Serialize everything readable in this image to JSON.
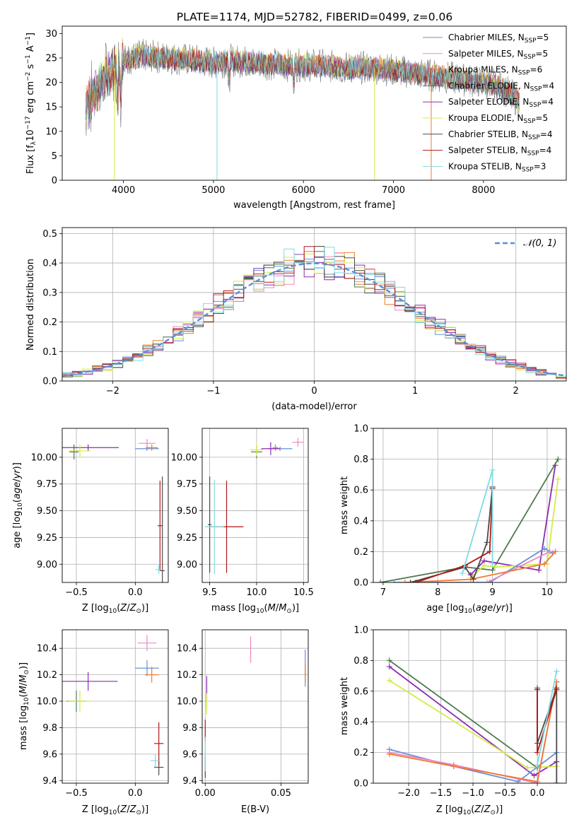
{
  "figure_title": "PLATE=1174, MJD=52782, FIBERID=0499, z=0.06",
  "colors": {
    "Chabrier MILES": "#6a8fd6",
    "Salpeter MILES": "#ef86c0",
    "Kroupa MILES": "#f07a30",
    "Chabrier ELODIE": "#4f7a4f",
    "Salpeter ELODIE": "#8e2ab5",
    "Kroupa ELODIE": "#d4ec44",
    "Chabrier STELIB": "#4a4a4a",
    "Salpeter STELIB": "#b01818",
    "Kroupa STELIB": "#7fdbe3",
    "data": "#7a7a7a",
    "normal": "#5b8fd9"
  },
  "legend1": [
    {
      "pre": "Chabrier MILES, N",
      "sub": "SSP",
      "post": "=5"
    },
    {
      "pre": "Salpeter MILES, N",
      "sub": "SSP",
      "post": "=5"
    },
    {
      "pre": "Kroupa MILES, N",
      "sub": "SSP",
      "post": "=6"
    },
    {
      "pre": "Chabrier ELODIE, N",
      "sub": "SSP",
      "post": "=4"
    },
    {
      "pre": "Salpeter ELODIE, N",
      "sub": "SSP",
      "post": "=4"
    },
    {
      "pre": "Kroupa ELODIE, N",
      "sub": "SSP",
      "post": "=5"
    },
    {
      "pre": "Chabrier STELIB, N",
      "sub": "SSP",
      "post": "=4"
    },
    {
      "pre": "Salpeter STELIB, N",
      "sub": "SSP",
      "post": "=4"
    },
    {
      "pre": "Kroupa STELIB, N",
      "sub": "SSP",
      "post": "=3"
    }
  ],
  "legend2_label": "𝒩(0, 1)",
  "axis_labels": {
    "p1_x": "wavelength [Angstrom, rest frame]",
    "p2_x": "(data-model)/error",
    "p2_y": "Normed distribution",
    "age_y": "age  [log₁₀(age/yr)]",
    "z_x": "Z [log₁₀(Z/Z⊙)]",
    "mass_x": "mass [log₁₀(M/M⊙)]",
    "mw_y": "mass weight",
    "age_x": "age  [log₁₀(age/yr)]",
    "mass_y": "mass [log₁₀(M/M⊙)]",
    "ebv_x": "E(B-V)"
  },
  "chart_data": [
    {
      "id": "spectrum",
      "type": "line",
      "xlabel": "wavelength [Angstrom, rest frame]",
      "ylabel": "Flux [fλ 10⁻¹⁷ erg cm⁻² s⁻¹ A⁻¹]",
      "xlim": [
        3320,
        8920
      ],
      "ylim": [
        0,
        31.5
      ],
      "xticks": [
        4000,
        5000,
        6000,
        7000,
        8000
      ],
      "yticks": [
        0,
        5,
        10,
        15,
        20,
        25,
        30
      ],
      "envelope": [
        [
          3580,
          14
        ],
        [
          3650,
          17
        ],
        [
          3720,
          19
        ],
        [
          3800,
          21
        ],
        [
          3900,
          23
        ],
        [
          4000,
          24.5
        ],
        [
          4200,
          25.5
        ],
        [
          4500,
          25
        ],
        [
          4800,
          24.5
        ],
        [
          5000,
          24
        ],
        [
          5200,
          24.5
        ],
        [
          5500,
          24
        ],
        [
          5800,
          23.5
        ],
        [
          6000,
          23.5
        ],
        [
          6200,
          23.5
        ],
        [
          6400,
          23
        ],
        [
          6600,
          23
        ],
        [
          6800,
          23
        ],
        [
          7000,
          22.5
        ],
        [
          7200,
          22
        ],
        [
          7400,
          21.5
        ],
        [
          7600,
          21
        ],
        [
          7800,
          20.5
        ],
        [
          8000,
          20
        ],
        [
          8200,
          19
        ],
        [
          8300,
          17.5
        ],
        [
          8400,
          16
        ]
      ],
      "dropouts": [
        {
          "x": 3900,
          "series": "Kroupa ELODIE",
          "to": 0
        },
        {
          "x": 5040,
          "series": "Kroupa STELIB",
          "to": 0
        },
        {
          "x": 6790,
          "series": "Kroupa ELODIE",
          "to": 0
        },
        {
          "x": 7420,
          "series": "Kroupa MILES",
          "to": 0
        }
      ],
      "grid": false,
      "legend": "top-right"
    },
    {
      "id": "residuals",
      "type": "step",
      "xlabel": "(data-model)/error",
      "ylabel": "Normed distribution",
      "xlim": [
        -2.5,
        2.5
      ],
      "ylim": [
        0,
        0.52
      ],
      "xticks": [
        -2,
        -1,
        0,
        1,
        2
      ],
      "yticks": [
        0.0,
        0.1,
        0.2,
        0.3,
        0.4,
        0.5
      ],
      "bin_width": 0.1,
      "reference": "N(0,1)",
      "grid": true,
      "legend": "top-right"
    },
    {
      "id": "age_vs_Z",
      "type": "errorbar",
      "xlim": [
        -0.62,
        0.28
      ],
      "ylim": [
        8.83,
        10.27
      ],
      "xticks": [
        -0.5,
        0.0
      ],
      "yticks": [
        9.0,
        9.25,
        9.5,
        9.75,
        10.0
      ],
      "points": [
        {
          "series": "Chabrier MILES",
          "x": 0.1,
          "y": 10.08,
          "xerr": 0.1,
          "yerr": 0.02
        },
        {
          "series": "Salpeter MILES",
          "x": 0.1,
          "y": 10.13,
          "xerr": 0.07,
          "yerr": 0.04
        },
        {
          "series": "Kroupa MILES",
          "x": 0.14,
          "y": 10.09,
          "xerr": 0.05,
          "yerr": 0.03
        },
        {
          "series": "Chabrier ELODIE",
          "x": -0.52,
          "y": 10.05,
          "xerr": 0.04,
          "yerr": 0.07
        },
        {
          "series": "Salpeter ELODIE",
          "x": -0.4,
          "y": 10.09,
          "xerr": 0.26,
          "yerr": 0.03
        },
        {
          "series": "Kroupa ELODIE",
          "x": -0.47,
          "y": 10.06,
          "xerr": 0.09,
          "yerr": 0.06
        },
        {
          "series": "Chabrier STELIB",
          "x": 0.23,
          "y": 8.94,
          "xerr": 0.02,
          "yerr": 0.88
        },
        {
          "series": "Salpeter STELIB",
          "x": 0.21,
          "y": 9.36,
          "xerr": 0.02,
          "yerr": 0.42
        },
        {
          "series": "Kroupa STELIB",
          "x": 0.2,
          "y": 8.95,
          "xerr": 0.03,
          "yerr": 0.04
        }
      ]
    },
    {
      "id": "age_vs_mass",
      "type": "errorbar",
      "xlim": [
        9.42,
        10.55
      ],
      "ylim": [
        8.83,
        10.27
      ],
      "xticks": [
        9.5,
        10.0,
        10.5
      ],
      "yticks": [
        9.0,
        9.25,
        9.5,
        9.75,
        10.0
      ],
      "points": [
        {
          "series": "Chabrier MILES",
          "x": 10.25,
          "y": 10.08,
          "xerr": 0.13,
          "yerr": 0.02
        },
        {
          "series": "Salpeter MILES",
          "x": 10.44,
          "y": 10.14,
          "xerr": 0.06,
          "yerr": 0.04
        },
        {
          "series": "Kroupa MILES",
          "x": 10.2,
          "y": 10.09,
          "xerr": 0.03,
          "yerr": 0.03
        },
        {
          "series": "Chabrier ELODIE",
          "x": 10.0,
          "y": 10.05,
          "xerr": 0.06,
          "yerr": 0.06
        },
        {
          "series": "Salpeter ELODIE",
          "x": 10.15,
          "y": 10.08,
          "xerr": 0.1,
          "yerr": 0.06
        },
        {
          "series": "Kroupa ELODIE",
          "x": 10.0,
          "y": 10.07,
          "xerr": 0.07,
          "yerr": 0.06
        },
        {
          "series": "Chabrier STELIB",
          "x": 9.5,
          "y": 9.37,
          "xerr": 0.02,
          "yerr": 0.45
        },
        {
          "series": "Salpeter STELIB",
          "x": 9.68,
          "y": 9.35,
          "xerr": 0.18,
          "yerr": 0.43
        },
        {
          "series": "Kroupa STELIB",
          "x": 9.55,
          "y": 9.35,
          "xerr": 0.1,
          "yerr": 0.44
        }
      ]
    },
    {
      "id": "mw_vs_age",
      "type": "line",
      "xlabel": "age  [log10(age/yr)]",
      "ylabel": "mass weight",
      "xlim": [
        6.82,
        10.35
      ],
      "ylim": [
        0,
        1
      ],
      "xticks": [
        7,
        8,
        9,
        10
      ],
      "yticks": [
        0.0,
        0.2,
        0.4,
        0.6,
        0.8,
        1.0
      ],
      "grid": true,
      "series": [
        {
          "name": "Chabrier ELODIE",
          "points": [
            [
              6.95,
              0
            ],
            [
              8.5,
              0.1
            ],
            [
              9.0,
              0.08
            ],
            [
              10.2,
              0.8
            ]
          ]
        },
        {
          "name": "Salpeter ELODIE",
          "points": [
            [
              8.6,
              0.05
            ],
            [
              8.85,
              0.14
            ],
            [
              9.85,
              0.08
            ],
            [
              10.15,
              0.76
            ]
          ]
        },
        {
          "name": "Kroupa ELODIE",
          "points": [
            [
              8.6,
              0.03
            ],
            [
              8.85,
              0.11
            ],
            [
              9.05,
              0.1
            ],
            [
              10.0,
              0.12
            ],
            [
              10.2,
              0.67
            ]
          ]
        },
        {
          "name": "Chabrier MILES",
          "points": [
            [
              7.2,
              0
            ],
            [
              8.95,
              0
            ],
            [
              9.95,
              0.22
            ],
            [
              10.1,
              0.19
            ]
          ]
        },
        {
          "name": "Salpeter MILES",
          "points": [
            [
              8.9,
              0
            ],
            [
              10.05,
              0.2
            ],
            [
              10.15,
              0.2
            ]
          ]
        },
        {
          "name": "Kroupa MILES",
          "points": [
            [
              7.4,
              0
            ],
            [
              8.6,
              0.02
            ],
            [
              9.95,
              0.12
            ],
            [
              10.15,
              0.2
            ]
          ]
        },
        {
          "name": "Chabrier STELIB",
          "points": [
            [
              7.5,
              0
            ],
            [
              8.5,
              0.1
            ],
            [
              8.65,
              0.02
            ],
            [
              8.9,
              0.26
            ],
            [
              9.0,
              0.62
            ]
          ]
        },
        {
          "name": "Salpeter STELIB",
          "points": [
            [
              7.6,
              0
            ],
            [
              8.5,
              0.11
            ],
            [
              8.95,
              0.2
            ],
            [
              9.0,
              0.61
            ]
          ]
        },
        {
          "name": "Kroupa STELIB",
          "points": [
            [
              8.45,
              0.06
            ],
            [
              9.0,
              0.73
            ],
            [
              9.0,
              0.12
            ]
          ]
        }
      ]
    },
    {
      "id": "mass_vs_Z",
      "type": "errorbar",
      "xlim": [
        -0.62,
        0.28
      ],
      "ylim": [
        9.38,
        10.54
      ],
      "xticks": [
        -0.5,
        0.0
      ],
      "yticks": [
        9.4,
        9.6,
        9.8,
        10.0,
        10.2,
        10.4
      ],
      "points": [
        {
          "series": "Chabrier MILES",
          "x": 0.1,
          "y": 10.25,
          "xerr": 0.1,
          "yerr": 0.06
        },
        {
          "series": "Salpeter MILES",
          "x": 0.1,
          "y": 10.44,
          "xerr": 0.08,
          "yerr": 0.06
        },
        {
          "series": "Kroupa MILES",
          "x": 0.14,
          "y": 10.2,
          "xerr": 0.06,
          "yerr": 0.06
        },
        {
          "series": "Chabrier ELODIE",
          "x": -0.5,
          "y": 10.0,
          "xerr": 0.08,
          "yerr": 0.08
        },
        {
          "series": "Salpeter ELODIE",
          "x": -0.4,
          "y": 10.15,
          "xerr": 0.25,
          "yerr": 0.07
        },
        {
          "series": "Kroupa ELODIE",
          "x": -0.47,
          "y": 10.0,
          "xerr": 0.1,
          "yerr": 0.08
        },
        {
          "series": "Chabrier STELIB",
          "x": 0.2,
          "y": 9.5,
          "xerr": 0.04,
          "yerr": 0.06
        },
        {
          "series": "Salpeter STELIB",
          "x": 0.2,
          "y": 9.68,
          "xerr": 0.04,
          "yerr": 0.16
        },
        {
          "series": "Kroupa STELIB",
          "x": 0.17,
          "y": 9.55,
          "xerr": 0.04,
          "yerr": 0.05
        }
      ]
    },
    {
      "id": "mass_vs_ebv",
      "type": "errorbar",
      "xlim": [
        -0.002,
        0.068
      ],
      "ylim": [
        9.38,
        10.54
      ],
      "xticks": [
        0.0,
        0.05
      ],
      "yticks": [
        9.4,
        9.6,
        9.8,
        10.0,
        10.2,
        10.4
      ],
      "points": [
        {
          "series": "Chabrier MILES",
          "x": 0.066,
          "y": 10.25,
          "xerr": 0,
          "yerr": 0.14
        },
        {
          "series": "Salpeter MILES",
          "x": 0.03,
          "y": 10.39,
          "xerr": 0,
          "yerr": 0.1
        },
        {
          "series": "Kroupa MILES",
          "x": 0.066,
          "y": 10.22,
          "xerr": 0,
          "yerr": 0.07
        },
        {
          "series": "Chabrier ELODIE",
          "x": 0.001,
          "y": 10.0,
          "xerr": 0,
          "yerr": 0.06
        },
        {
          "series": "Salpeter ELODIE",
          "x": 0.001,
          "y": 10.1,
          "xerr": 0,
          "yerr": 0.09
        },
        {
          "series": "Kroupa ELODIE",
          "x": 0.001,
          "y": 9.98,
          "xerr": 0,
          "yerr": 0.08
        },
        {
          "series": "Chabrier STELIB",
          "x": 0.0,
          "y": 9.5,
          "xerr": 0,
          "yerr": 0.08
        },
        {
          "series": "Salpeter STELIB",
          "x": 0.0,
          "y": 9.78,
          "xerr": 0,
          "yerr": 0.08
        },
        {
          "series": "Kroupa STELIB",
          "x": 0.0,
          "y": 9.6,
          "xerr": 0,
          "yerr": 0.13
        }
      ]
    },
    {
      "id": "mw_vs_Z",
      "type": "line",
      "xlabel": "Z [log10(Z/Z⊙)]",
      "ylabel": "mass weight",
      "xlim": [
        -2.55,
        0.45
      ],
      "ylim": [
        0,
        1
      ],
      "xticks": [
        -2.0,
        -1.5,
        -1.0,
        -0.5,
        0.0
      ],
      "yticks": [
        0.0,
        0.2,
        0.4,
        0.6,
        0.8,
        1.0
      ],
      "grid": true,
      "series": [
        {
          "name": "Chabrier ELODIE",
          "points": [
            [
              -2.3,
              0.8
            ],
            [
              0.0,
              0.1
            ]
          ]
        },
        {
          "name": "Salpeter ELODIE",
          "points": [
            [
              -2.3,
              0.76
            ],
            [
              -0.05,
              0.05
            ],
            [
              0.3,
              0.14
            ]
          ]
        },
        {
          "name": "Kroupa ELODIE",
          "points": [
            [
              -2.3,
              0.67
            ],
            [
              -0.15,
              0.1
            ],
            [
              0.3,
              0.11
            ]
          ]
        },
        {
          "name": "Chabrier MILES",
          "points": [
            [
              -2.3,
              0.22
            ],
            [
              -1.3,
              0.11
            ],
            [
              -0.3,
              0.01
            ],
            [
              0.3,
              0.2
            ]
          ]
        },
        {
          "name": "Salpeter MILES",
          "points": [
            [
              -2.3,
              0.2
            ],
            [
              -1.3,
              0.12
            ],
            [
              0.0,
              0.0
            ],
            [
              0.3,
              0.66
            ]
          ]
        },
        {
          "name": "Kroupa MILES",
          "points": [
            [
              -2.3,
              0.19
            ],
            [
              -1.3,
              0.11
            ],
            [
              0.0,
              0.01
            ],
            [
              0.3,
              0.66
            ]
          ]
        },
        {
          "name": "Chabrier STELIB",
          "points": [
            [
              0.0,
              0.62
            ],
            [
              0.0,
              0.26
            ],
            [
              0.3,
              0.62
            ],
            [
              0.3,
              0.0
            ]
          ]
        },
        {
          "name": "Salpeter STELIB",
          "points": [
            [
              0.0,
              0.61
            ],
            [
              0.0,
              0.2
            ],
            [
              0.3,
              0.61
            ]
          ]
        },
        {
          "name": "Kroupa STELIB",
          "points": [
            [
              0.0,
              0.12
            ],
            [
              0.3,
              0.73
            ]
          ]
        }
      ]
    }
  ]
}
